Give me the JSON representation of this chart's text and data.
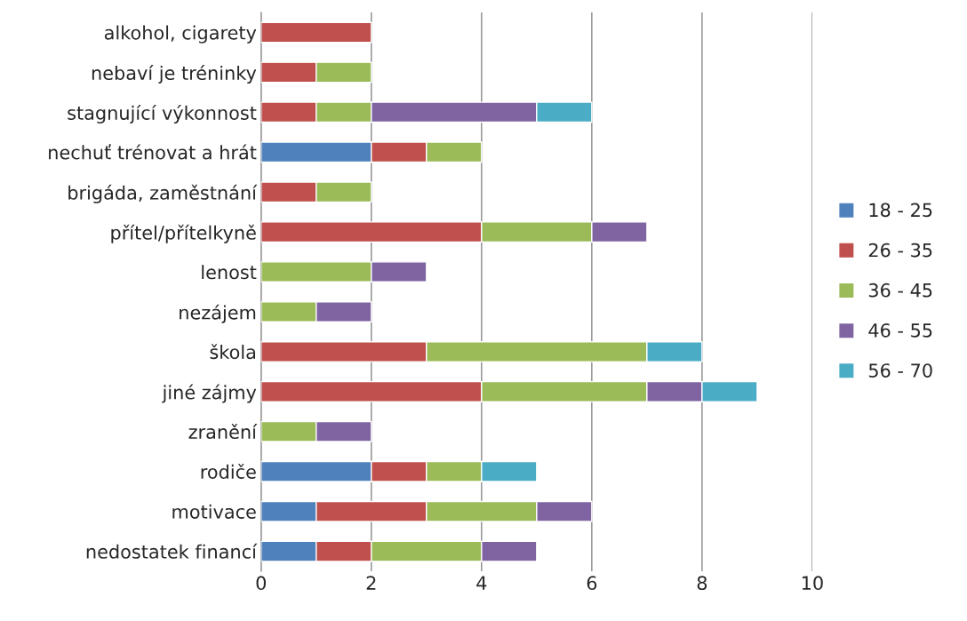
{
  "chart_data": {
    "type": "bar",
    "orientation": "horizontal",
    "stacked": true,
    "categories": [
      "alkohol, cigarety",
      "nebaví je tréninky",
      "stagnující výkonnost",
      "nechuť trénovat a hrát",
      "brigáda, zaměstnání",
      "přítel/přítelkyně",
      "lenost",
      "nezájem",
      "škola",
      "jiné zájmy",
      "zranění",
      "rodiče",
      "motivace",
      "nedostatek financí"
    ],
    "series": [
      {
        "name": "18 - 25",
        "color": "#4f81bd",
        "values": [
          null,
          null,
          null,
          2,
          null,
          null,
          null,
          null,
          null,
          null,
          null,
          2,
          1,
          1
        ]
      },
      {
        "name": "26 - 35",
        "color": "#c0504d",
        "values": [
          2,
          1,
          1,
          1,
          1,
          4,
          null,
          null,
          3,
          4,
          null,
          1,
          2,
          1
        ]
      },
      {
        "name": "36 - 45",
        "color": "#9bbb59",
        "values": [
          null,
          1,
          1,
          1,
          1,
          2,
          2,
          1,
          4,
          3,
          1,
          1,
          2,
          2
        ]
      },
      {
        "name": "46 - 55",
        "color": "#8064a2",
        "values": [
          null,
          null,
          3,
          null,
          null,
          1,
          1,
          1,
          null,
          1,
          1,
          null,
          1,
          1
        ]
      },
      {
        "name": "56 - 70",
        "color": "#4bacc6",
        "values": [
          null,
          null,
          1,
          null,
          null,
          null,
          null,
          null,
          1,
          1,
          null,
          1,
          null,
          null
        ]
      }
    ],
    "xlim": [
      0,
      10
    ],
    "xticks": [
      0,
      2,
      4,
      6,
      8,
      10
    ],
    "grid": "x",
    "legend": "right"
  }
}
